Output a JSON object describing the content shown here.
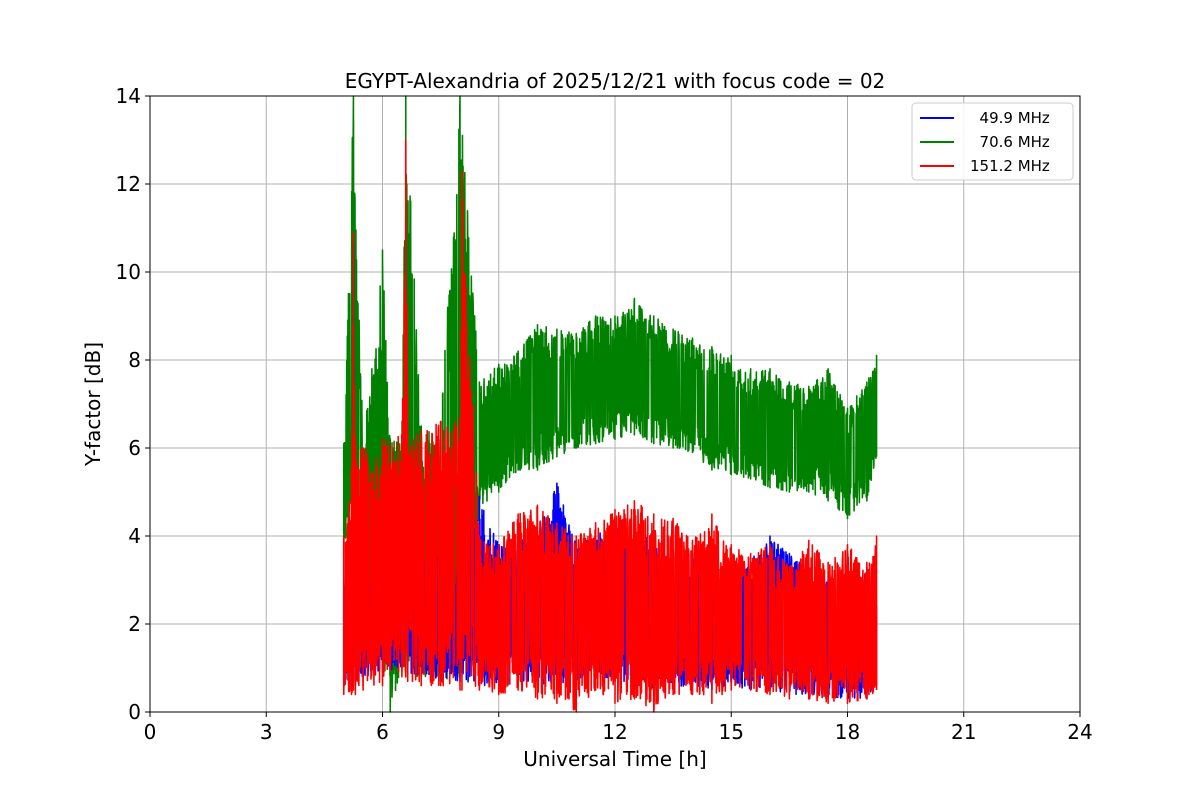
{
  "chart_data": {
    "type": "line",
    "title": "EGYPT-Alexandria of 2025/12/21 with focus code = 02",
    "xlabel": "Universal Time [h]",
    "ylabel": "Y-factor [dB]",
    "xlim": [
      0,
      24
    ],
    "ylim": [
      0,
      14
    ],
    "x_ticks": [
      0,
      3,
      6,
      9,
      12,
      15,
      18,
      21,
      24
    ],
    "y_ticks": [
      0,
      2,
      4,
      6,
      8,
      10,
      12,
      14
    ],
    "grid": true,
    "legend_position": "top-right",
    "series": [
      {
        "name": "  49.9 MHz",
        "color": "#0000ff",
        "x": [
          5.0,
          5.2,
          5.25,
          5.3,
          5.5,
          6.0,
          6.5,
          6.6,
          6.65,
          7.0,
          7.5,
          8.0,
          8.5,
          9.0,
          9.5,
          10.0,
          10.5,
          11.0,
          11.5,
          12.0,
          12.5,
          13.0,
          13.5,
          14.0,
          14.5,
          15.0,
          15.5,
          16.0,
          16.5,
          17.0,
          17.5,
          18.0,
          18.5,
          18.75
        ],
        "upper": [
          3.0,
          3.2,
          10.6,
          3.5,
          3.0,
          3.2,
          3.4,
          11.2,
          3.4,
          3.5,
          3.6,
          3.5,
          4.9,
          3.8,
          3.9,
          4.1,
          5.2,
          3.9,
          4.0,
          4.3,
          4.1,
          3.9,
          3.5,
          3.6,
          3.0,
          3.2,
          3.5,
          4.0,
          3.6,
          3.4,
          3.0,
          2.8,
          3.3,
          2.4
        ],
        "lower": [
          0.6,
          0.5,
          0.7,
          0.6,
          0.8,
          0.9,
          1.0,
          1.0,
          0.9,
          0.8,
          0.7,
          0.7,
          0.6,
          0.6,
          0.6,
          0.7,
          0.5,
          0.7,
          0.8,
          0.7,
          0.6,
          0.5,
          0.5,
          0.6,
          0.5,
          0.6,
          0.5,
          0.5,
          0.4,
          0.4,
          0.3,
          0.3,
          0.3,
          0.6
        ]
      },
      {
        "name": "  70.6 MHz",
        "color": "#008000",
        "x": [
          5.0,
          5.25,
          5.5,
          6.0,
          6.2,
          6.5,
          6.6,
          7.0,
          7.5,
          8.0,
          8.5,
          9.0,
          9.5,
          10.0,
          10.5,
          11.0,
          11.5,
          12.0,
          12.5,
          13.0,
          13.5,
          14.0,
          14.5,
          15.0,
          15.5,
          16.0,
          16.5,
          17.0,
          17.5,
          18.0,
          18.5,
          18.75
        ],
        "upper": [
          6.1,
          14.0,
          6.0,
          10.5,
          6.2,
          6.3,
          14.0,
          6.5,
          6.6,
          14.0,
          7.5,
          7.9,
          8.2,
          8.8,
          8.7,
          8.6,
          9.0,
          9.0,
          9.4,
          9.0,
          8.7,
          8.5,
          8.3,
          8.1,
          7.8,
          7.8,
          7.5,
          7.4,
          7.8,
          6.9,
          7.5,
          8.1
        ],
        "lower": [
          3.5,
          5.0,
          1.5,
          1.0,
          0.0,
          0.9,
          0.8,
          0.8,
          0.7,
          0.8,
          4.6,
          5.0,
          5.5,
          5.5,
          5.8,
          6.0,
          6.1,
          6.2,
          6.3,
          6.1,
          6.0,
          5.9,
          5.5,
          5.4,
          5.3,
          5.1,
          5.0,
          5.0,
          4.8,
          4.4,
          4.8,
          5.8
        ]
      },
      {
        "name": "151.2 MHz",
        "color": "#ff0000",
        "x": [
          5.0,
          5.2,
          5.25,
          5.3,
          5.5,
          6.0,
          6.5,
          6.6,
          6.65,
          7.0,
          7.5,
          8.0,
          8.05,
          8.5,
          9.0,
          9.5,
          10.0,
          10.5,
          11.0,
          11.5,
          12.0,
          12.5,
          13.0,
          13.5,
          14.0,
          14.5,
          15.0,
          15.5,
          16.0,
          16.5,
          17.0,
          17.5,
          18.0,
          18.5,
          18.75
        ],
        "upper": [
          4.0,
          5.5,
          10.9,
          6.0,
          6.0,
          6.2,
          6.3,
          13.0,
          6.3,
          6.4,
          6.6,
          6.7,
          12.3,
          4.0,
          3.8,
          4.5,
          4.7,
          4.3,
          4.0,
          4.3,
          4.6,
          4.8,
          4.5,
          4.4,
          3.9,
          4.5,
          3.8,
          3.6,
          3.8,
          3.3,
          3.9,
          3.4,
          3.8,
          3.4,
          4.0
        ],
        "lower": [
          0.4,
          0.4,
          0.5,
          0.4,
          0.5,
          0.6,
          0.8,
          0.8,
          0.7,
          0.6,
          0.6,
          0.5,
          0.5,
          0.5,
          0.4,
          0.5,
          0.3,
          0.2,
          0.0,
          0.5,
          0.2,
          0.3,
          0.0,
          0.4,
          0.4,
          0.2,
          0.5,
          0.5,
          0.4,
          0.3,
          0.3,
          0.2,
          0.2,
          0.3,
          0.5
        ]
      }
    ]
  }
}
